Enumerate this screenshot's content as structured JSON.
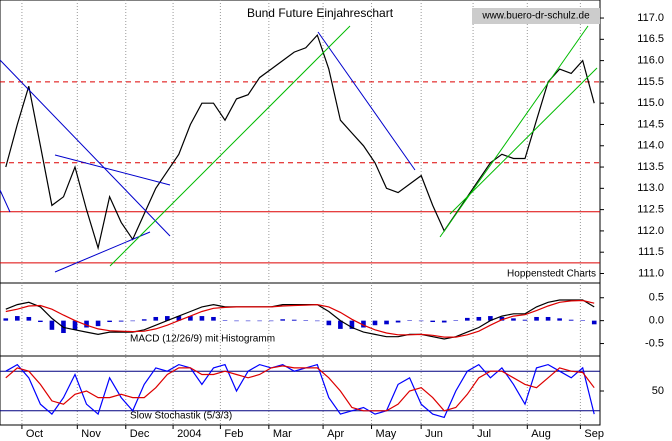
{
  "chart_data": [
    {
      "type": "line",
      "title": "Bund Future Einjahreschart",
      "annotations": [
        "www.buero-dr-schulz.de",
        "Hoppenstedt Charts"
      ],
      "xlim": [
        0,
        52
      ],
      "ylim": [
        110.8,
        117.4
      ],
      "yticks": [
        {
          "value": 117,
          "label": "117.0"
        },
        116.5,
        {
          "value": 116,
          "label": "116.0"
        },
        115.5,
        {
          "value": 115,
          "label": "115.0"
        },
        114.5,
        {
          "value": 114,
          "label": "114.0"
        },
        113.5,
        {
          "value": 113,
          "label": "113.0"
        },
        112.5,
        {
          "value": 112,
          "label": "112.0"
        },
        111.5,
        {
          "value": 111,
          "label": "111.0"
        }
      ],
      "reference_lines": [
        {
          "value": 115.5,
          "color": "#dd0000",
          "style": "dashed"
        },
        {
          "value": 113.6,
          "color": "#dd0000",
          "style": "dashed"
        },
        {
          "value": 112.45,
          "color": "#dd0000",
          "style": "solid"
        },
        {
          "value": 111.25,
          "color": "#dd0000",
          "style": "solid"
        }
      ],
      "series": [
        {
          "color": "#000000",
          "values": [
            113.5,
            114.5,
            115.4,
            114.0,
            112.6,
            112.8,
            113.5,
            112.5,
            111.6,
            112.8,
            112.2,
            111.8,
            112.4,
            113.0,
            113.4,
            113.8,
            114.5,
            115.0,
            115.0,
            114.6,
            115.1,
            115.2,
            115.6,
            115.8,
            116.0,
            116.2,
            116.3,
            116.6,
            115.8,
            114.6,
            114.3,
            114.0,
            113.6,
            113.0,
            112.9,
            113.1,
            113.3,
            112.6,
            112.0,
            112.4,
            112.8,
            113.2,
            113.6,
            113.8,
            113.7,
            113.7,
            114.6,
            115.5,
            115.8,
            115.7,
            116.0,
            115.0
          ]
        }
      ]
    },
    {
      "type": "macd",
      "label": "MACD (12/26/9) mit Histogramm",
      "xlim": [
        0,
        52
      ],
      "ylim": [
        -0.75,
        0.8
      ],
      "yticks": [
        0.5,
        {
          "value": 0,
          "label": "0.0"
        },
        -0.5
      ],
      "histogram": {
        "color": "#0000cc",
        "values": [
          0.05,
          0.1,
          0.08,
          -0.03,
          -0.2,
          -0.27,
          -0.2,
          -0.15,
          -0.12,
          -0.03,
          -0.02,
          -0.01,
          0.03,
          0.08,
          0.1,
          0.1,
          0.1,
          0.1,
          0.08,
          0.01,
          0,
          0,
          0,
          0,
          0.03,
          0.02,
          0.01,
          0,
          -0.1,
          -0.18,
          -0.18,
          -0.15,
          -0.1,
          -0.08,
          -0.04,
          0.01,
          0,
          -0.03,
          -0.04,
          0.01,
          0.06,
          0.08,
          0.1,
          0.08,
          0.05,
          0.02,
          0.08,
          0.08,
          0.05,
          0.02,
          0.01,
          -0.08
        ]
      },
      "series": [
        {
          "color": "#000000",
          "values": [
            0.25,
            0.35,
            0.4,
            0.3,
            0.05,
            -0.15,
            -0.2,
            -0.25,
            -0.3,
            -0.25,
            -0.25,
            -0.25,
            -0.2,
            -0.1,
            0,
            0.1,
            0.2,
            0.3,
            0.35,
            0.3,
            0.3,
            0.3,
            0.3,
            0.3,
            0.35,
            0.35,
            0.35,
            0.35,
            0.2,
            0,
            -0.15,
            -0.25,
            -0.3,
            -0.35,
            -0.35,
            -0.3,
            -0.3,
            -0.35,
            -0.4,
            -0.35,
            -0.25,
            -0.15,
            0,
            0.1,
            0.15,
            0.15,
            0.3,
            0.4,
            0.45,
            0.45,
            0.45,
            0.3
          ]
        },
        {
          "color": "#dd0000",
          "values": [
            0.2,
            0.25,
            0.32,
            0.33,
            0.25,
            0.12,
            0,
            -0.1,
            -0.18,
            -0.22,
            -0.23,
            -0.24,
            -0.23,
            -0.18,
            -0.1,
            0,
            0.1,
            0.2,
            0.27,
            0.29,
            0.3,
            0.3,
            0.3,
            0.3,
            0.32,
            0.33,
            0.34,
            0.35,
            0.3,
            0.18,
            0.03,
            -0.1,
            -0.2,
            -0.27,
            -0.31,
            -0.31,
            -0.3,
            -0.32,
            -0.36,
            -0.36,
            -0.31,
            -0.23,
            -0.1,
            0.02,
            0.1,
            0.13,
            0.22,
            0.32,
            0.4,
            0.43,
            0.44,
            0.38
          ]
        }
      ]
    },
    {
      "type": "line",
      "label": "Slow Stochastik (5/3/3)",
      "xlim": [
        0,
        52
      ],
      "ylim": [
        0,
        100
      ],
      "yticks": [
        50
      ],
      "reference_lines": [
        {
          "value": 80,
          "color": "#000080",
          "style": "solid"
        },
        {
          "value": 20,
          "color": "#000080",
          "style": "solid"
        }
      ],
      "xticks": [
        {
          "value": 1.9,
          "label": "Oct"
        },
        {
          "value": 6.7,
          "label": "Nov"
        },
        {
          "value": 10.9,
          "label": "Dec"
        },
        {
          "value": 15,
          "label": "2004"
        },
        {
          "value": 19.1,
          "label": "Feb"
        },
        {
          "value": 23.3,
          "label": "Mar"
        },
        {
          "value": 28,
          "label": "Apr"
        },
        {
          "value": 32.2,
          "label": "May"
        },
        {
          "value": 36.5,
          "label": "Jun"
        },
        {
          "value": 41,
          "label": "Jul"
        },
        {
          "value": 45.7,
          "label": "Aug"
        },
        {
          "value": 50.3,
          "label": "Sep"
        }
      ],
      "series": [
        {
          "color": "#0000ff",
          "values": [
            80,
            90,
            70,
            30,
            15,
            40,
            75,
            30,
            15,
            70,
            40,
            20,
            60,
            85,
            80,
            90,
            85,
            60,
            85,
            90,
            50,
            80,
            90,
            85,
            90,
            80,
            85,
            90,
            40,
            15,
            20,
            25,
            15,
            20,
            60,
            70,
            30,
            15,
            10,
            50,
            80,
            90,
            70,
            85,
            60,
            30,
            85,
            90,
            80,
            70,
            85,
            15
          ]
        },
        {
          "color": "#dd0000",
          "values": [
            70,
            85,
            80,
            60,
            35,
            30,
            45,
            50,
            40,
            40,
            45,
            40,
            40,
            55,
            75,
            85,
            85,
            75,
            75,
            80,
            75,
            70,
            75,
            85,
            88,
            85,
            85,
            85,
            70,
            50,
            25,
            20,
            20,
            20,
            30,
            50,
            55,
            40,
            20,
            25,
            45,
            70,
            80,
            80,
            70,
            60,
            55,
            70,
            85,
            80,
            78,
            55
          ]
        }
      ]
    }
  ]
}
